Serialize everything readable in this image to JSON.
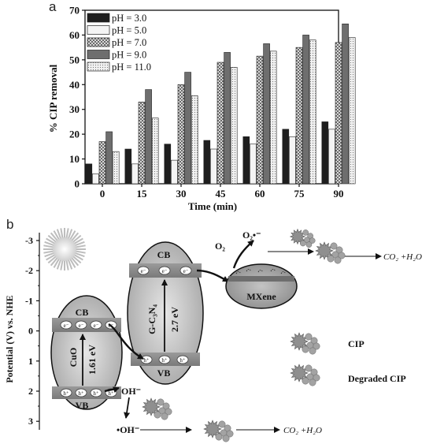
{
  "chart_data": [
    {
      "type": "bar",
      "panel_label": "a",
      "xlabel": "Time (min)",
      "ylabel": "% CIP removal",
      "ylim": [
        0,
        70
      ],
      "yticks": [
        0,
        10,
        20,
        30,
        40,
        50,
        60,
        70
      ],
      "categories": [
        "0",
        "15",
        "30",
        "45",
        "60",
        "75",
        "90"
      ],
      "legend_position": "top-left",
      "grid": false,
      "series": [
        {
          "name": "pH = 3.0",
          "values": [
            8,
            14,
            16,
            17.5,
            19,
            22,
            25
          ],
          "pattern": "solid-dark",
          "color": "#1e1e1e"
        },
        {
          "name": "pH = 5.0",
          "values": [
            4,
            8,
            9.5,
            14,
            16,
            19,
            22
          ],
          "pattern": "light",
          "color": "#f4f4f4"
        },
        {
          "name": "pH = 7.0",
          "values": [
            17,
            33,
            40,
            49,
            51.5,
            55,
            57
          ],
          "pattern": "checker",
          "color": "#9a9a9a"
        },
        {
          "name": "pH = 9.0",
          "values": [
            21,
            38,
            45,
            53,
            56.5,
            60,
            64.5
          ],
          "pattern": "solid-mid",
          "color": "#6e6e6e"
        },
        {
          "name": "pH = 11.0",
          "values": [
            13,
            26.5,
            35.5,
            47,
            53.5,
            58,
            59
          ],
          "pattern": "dots",
          "color": "#ececec"
        }
      ]
    },
    {
      "type": "diagram",
      "panel_label": "b",
      "ylabel": "Potential (V) vs. NHE",
      "yticks": [
        "-3",
        "-2",
        "-1",
        "0",
        "1",
        "2",
        "3"
      ],
      "cuo": {
        "cb": "CB",
        "vb": "VB",
        "name": "CuO",
        "gap": "1.61 eV"
      },
      "gcn": {
        "cb": "CB",
        "vb": "VB",
        "name": "G-C₃N₄",
        "gap": "2.7 eV"
      },
      "mxene": "MXene",
      "electron": "e⁻",
      "hole": "h⁺",
      "o2": "O₂",
      "o2_radical": "O₂•⁻",
      "oh_minus": "OH⁻",
      "oh_radical": "•OH⁻",
      "products_top": "CO₂ +H₂O",
      "products_bottom": "CO₂ +H₂O",
      "legend_cip": "CIP",
      "legend_degraded": "Degraded CIP",
      "colors": {
        "ellipse": "#c8c8c8",
        "band": "#8a8a8a",
        "mxene": "#9e9e9e"
      }
    }
  ]
}
